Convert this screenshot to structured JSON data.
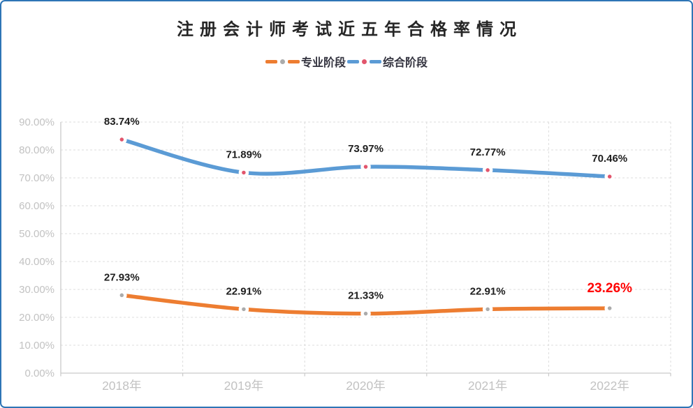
{
  "page": {
    "background": "#FFFFFF",
    "border_color": "#2E75B6"
  },
  "chart_data": {
    "type": "line",
    "title": "注册会计师考试近五年合格率情况",
    "legend_position": "top",
    "grid": true,
    "categories": [
      "2018年",
      "2019年",
      "2020年",
      "2021年",
      "2022年"
    ],
    "series": [
      {
        "key": "professional-stage",
        "name": "专业阶段",
        "values": [
          27.93,
          22.91,
          21.33,
          22.91,
          23.26
        ],
        "point_labels": [
          "27.93%",
          "22.91%",
          "21.33%",
          "22.91%",
          "23.26%"
        ],
        "line_color": "#ED7D31",
        "marker_color": "#ABABAB"
      },
      {
        "key": "comprehensive-stage",
        "name": "综合阶段",
        "values": [
          83.74,
          71.89,
          73.97,
          72.77,
          70.46
        ],
        "point_labels": [
          "83.74%",
          "71.89%",
          "73.97%",
          "72.77%",
          "70.46%"
        ],
        "line_color": "#5B9BD5",
        "marker_color": "#E2556C"
      }
    ],
    "y_axis": {
      "min": 0,
      "max": 90,
      "step": 10,
      "tick_labels": [
        "0.00%",
        "10.00%",
        "20.00%",
        "30.00%",
        "40.00%",
        "50.00%",
        "60.00%",
        "70.00%",
        "80.00%",
        "90.00%"
      ]
    },
    "highlight": {
      "series_index": 0,
      "point_index": 4,
      "label": "23.26%",
      "color": "#FF0000"
    },
    "label_color": "#1F1F1F",
    "axis_text_color": "#C2C2C2",
    "gridline_color": "#DCDCDC",
    "axis_line_color": "#C9C9C9"
  }
}
